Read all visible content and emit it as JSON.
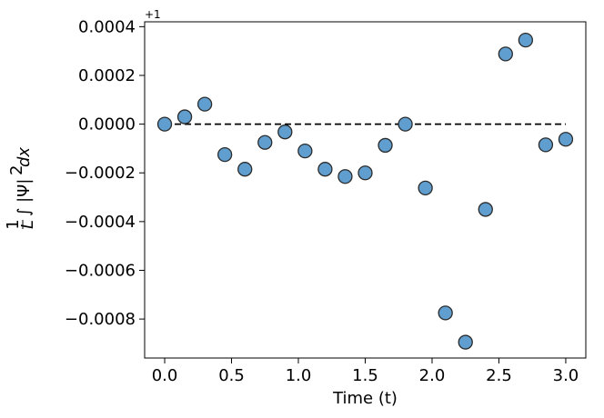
{
  "chart_data": {
    "type": "scatter",
    "title": "",
    "xlabel": "Time (t)",
    "ylabel": "1/L ∫ |Ψ|² dx",
    "ylabel_parts": {
      "frac_num": "1",
      "frac_den": "L",
      "body": "∫ |Ψ|",
      "sup": "2",
      "tail": "dx"
    },
    "y_offset_label": "+1",
    "xlim": [
      -0.15,
      3.15
    ],
    "ylim": [
      -0.00096,
      0.00042
    ],
    "xticks": [
      0.0,
      0.5,
      1.0,
      1.5,
      2.0,
      2.5,
      3.0
    ],
    "xtick_labels": [
      "0.0",
      "0.5",
      "1.0",
      "1.5",
      "2.0",
      "2.5",
      "3.0"
    ],
    "yticks": [
      0.0004,
      0.0002,
      0.0,
      -0.0002,
      -0.0004,
      -0.0006,
      -0.0008
    ],
    "ytick_labels": [
      "0.0004",
      "0.0002",
      "0.0000",
      "−0.0002",
      "−0.0004",
      "−0.0006",
      "−0.0008"
    ],
    "reference_line": {
      "y": 0.0,
      "x_from": 0.0,
      "x_to": 3.0,
      "style": "dashed",
      "color": "#000000"
    },
    "grid": false,
    "marker_color": "#5f9ecf",
    "marker_edge_color": "#2b2b2b",
    "series": [
      {
        "x": [
          0.0,
          0.15,
          0.3,
          0.45,
          0.6,
          0.75,
          0.9,
          1.05,
          1.2,
          1.35,
          1.5,
          1.65,
          1.8,
          1.95,
          2.1,
          2.25,
          2.4,
          2.55,
          2.7,
          2.85,
          3.0
        ],
        "y": [
          0.0,
          3e-05,
          8.2e-05,
          -0.000125,
          -0.000185,
          -7.5e-05,
          -3.2e-05,
          -0.00011,
          -0.000185,
          -0.000215,
          -0.0002,
          -8.7e-05,
          0.0,
          -0.000262,
          -0.000775,
          -0.000895,
          -0.00035,
          0.000288,
          0.000345,
          -8.5e-05,
          -6.2e-05
        ]
      }
    ]
  }
}
